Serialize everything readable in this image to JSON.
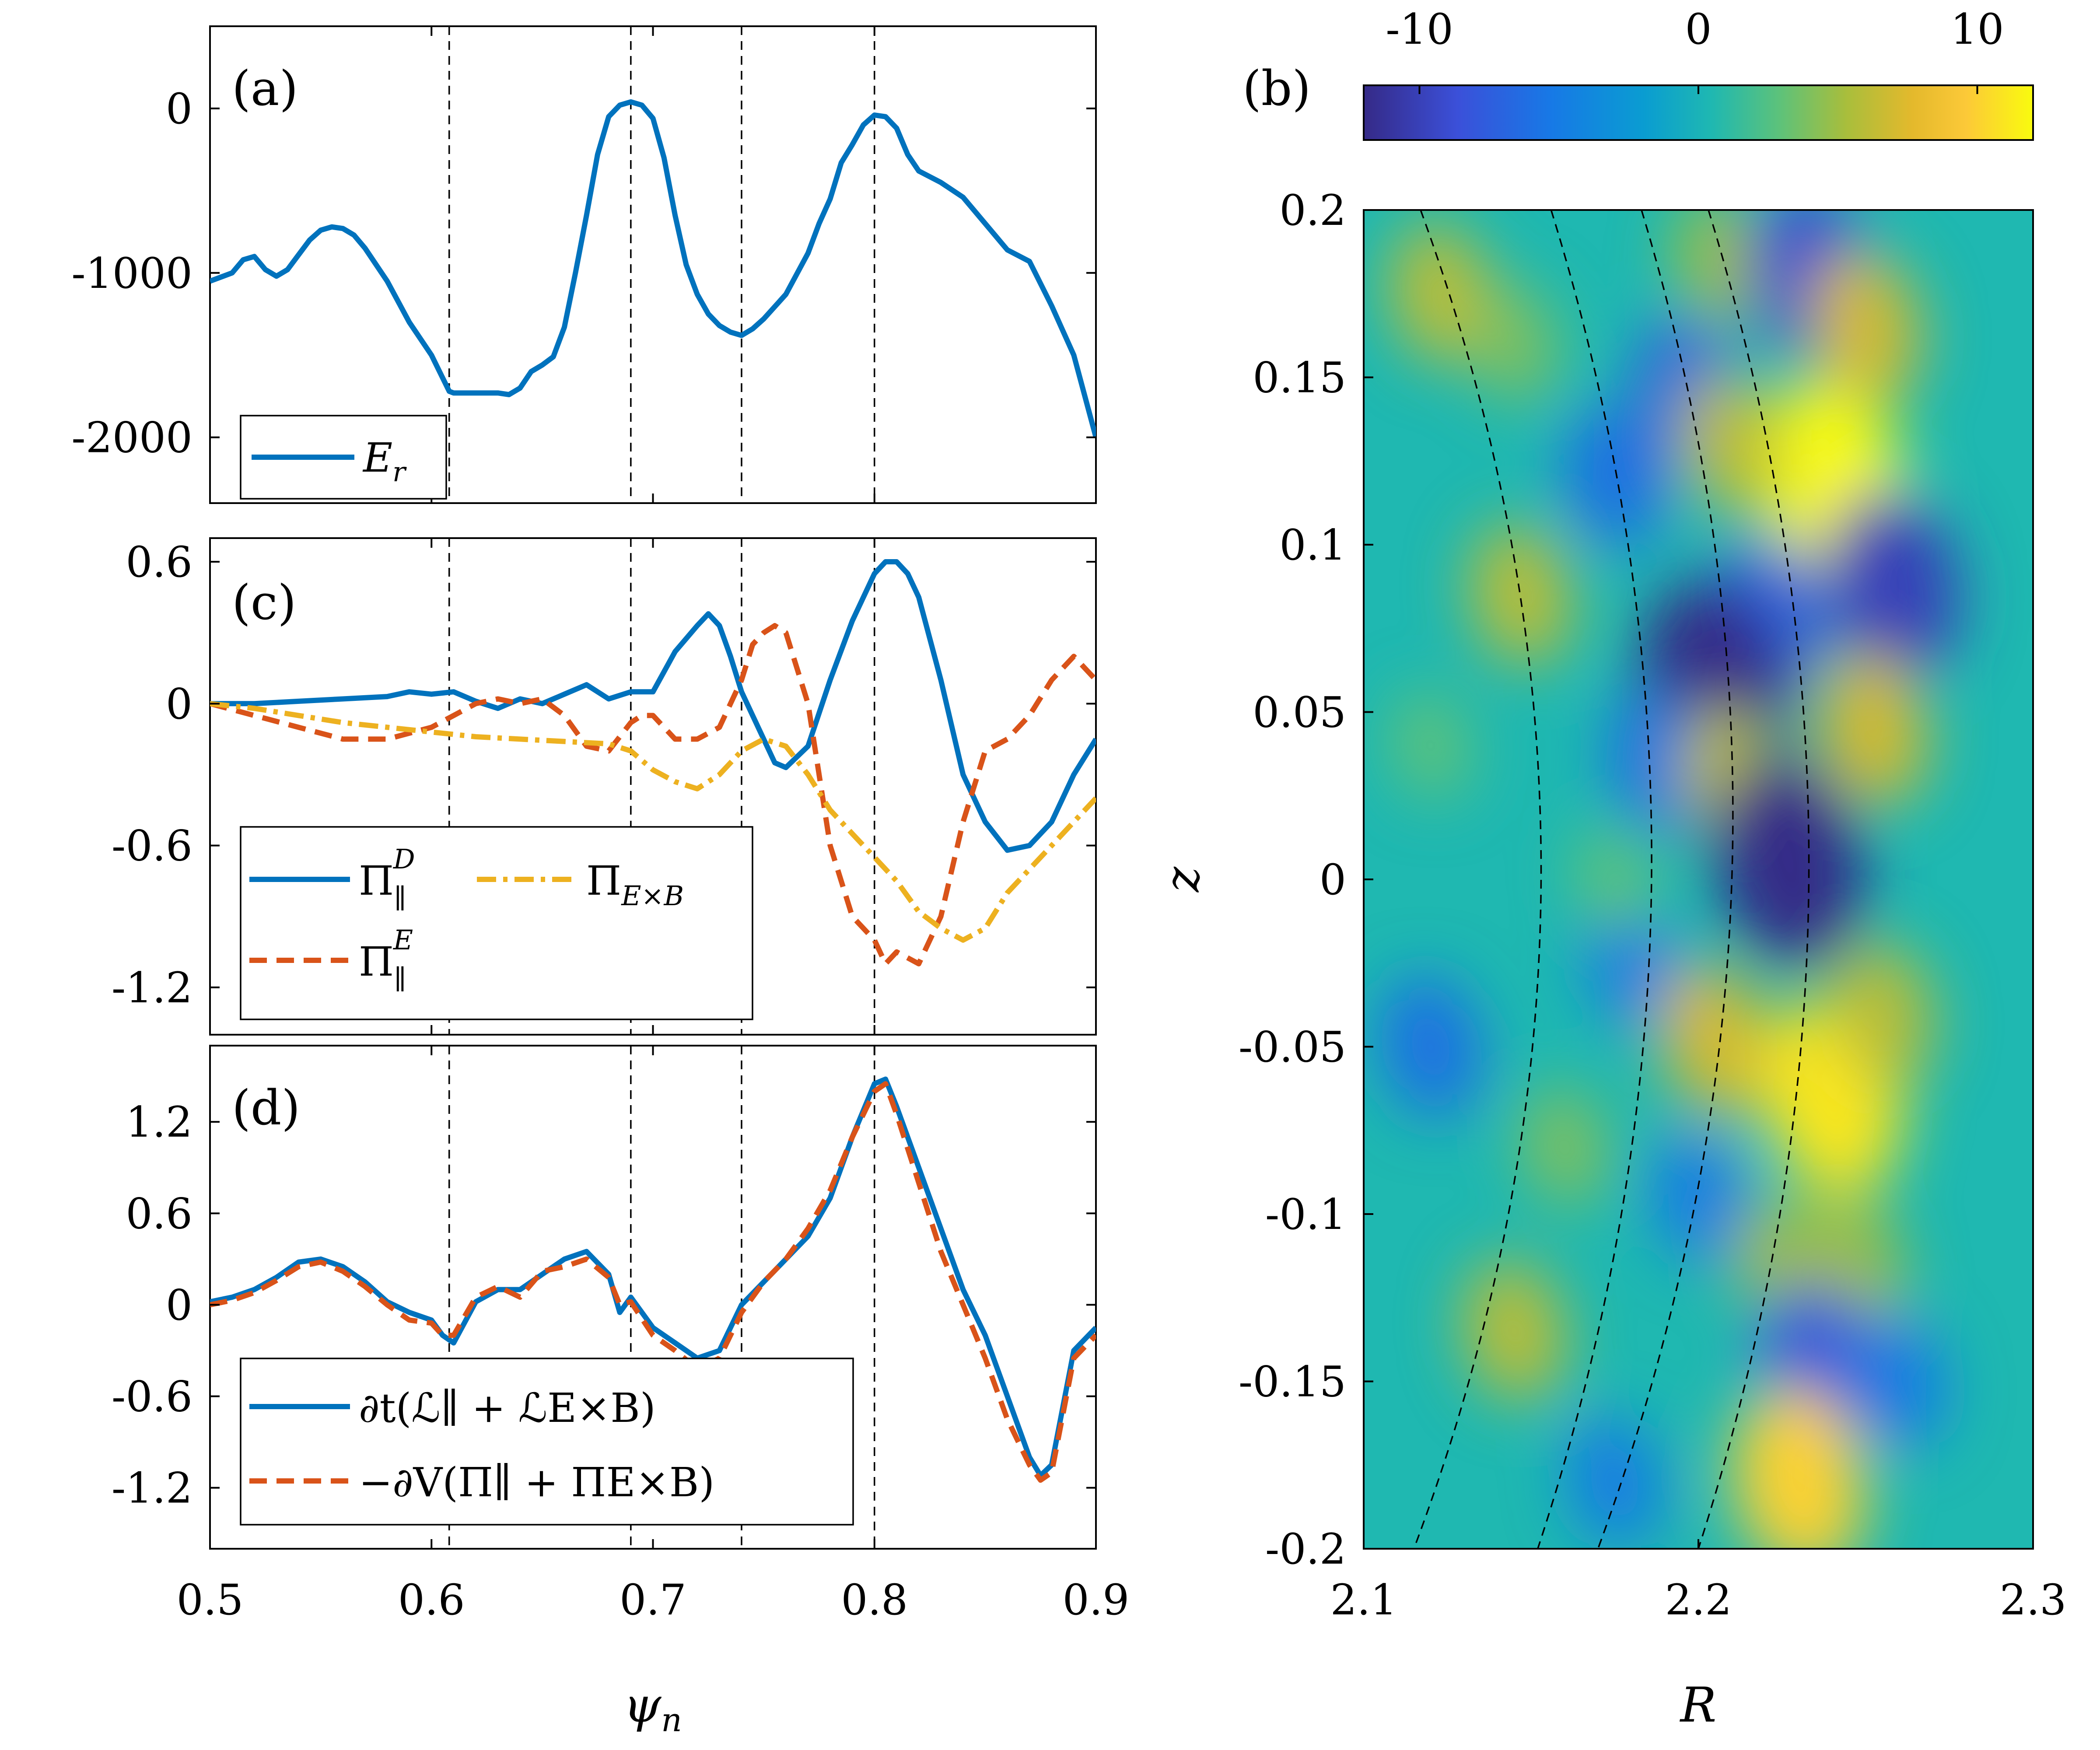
{
  "chart_data": [
    {
      "panel_label": "(a)",
      "type": "line",
      "xlim": [
        0.5,
        0.9
      ],
      "ylim": [
        -2400,
        500
      ],
      "yticks": [
        0,
        -1000,
        -2000
      ],
      "ytick_labels": [
        "0",
        "-1000",
        "-2000"
      ],
      "vlines": [
        0.608,
        0.69,
        0.74,
        0.8
      ],
      "series": [
        {
          "name": "E_r",
          "color": "#0072BD",
          "dash": "solid",
          "x": [
            0.5,
            0.51,
            0.515,
            0.52,
            0.525,
            0.53,
            0.535,
            0.54,
            0.545,
            0.55,
            0.555,
            0.56,
            0.565,
            0.57,
            0.58,
            0.59,
            0.6,
            0.608,
            0.61,
            0.62,
            0.63,
            0.635,
            0.64,
            0.645,
            0.65,
            0.655,
            0.66,
            0.665,
            0.67,
            0.675,
            0.68,
            0.685,
            0.69,
            0.695,
            0.7,
            0.705,
            0.71,
            0.715,
            0.72,
            0.725,
            0.73,
            0.735,
            0.74,
            0.745,
            0.75,
            0.76,
            0.77,
            0.775,
            0.78,
            0.785,
            0.79,
            0.795,
            0.8,
            0.805,
            0.81,
            0.815,
            0.82,
            0.83,
            0.84,
            0.85,
            0.86,
            0.87,
            0.88,
            0.89,
            0.9
          ],
          "values": [
            -1050,
            -1000,
            -920,
            -900,
            -980,
            -1020,
            -980,
            -890,
            -800,
            -740,
            -720,
            -730,
            -770,
            -850,
            -1050,
            -1300,
            -1500,
            -1720,
            -1730,
            -1730,
            -1730,
            -1740,
            -1700,
            -1600,
            -1560,
            -1510,
            -1330,
            -1000,
            -650,
            -280,
            -50,
            20,
            40,
            20,
            -60,
            -300,
            -650,
            -950,
            -1130,
            -1250,
            -1320,
            -1360,
            -1380,
            -1340,
            -1280,
            -1130,
            -880,
            -700,
            -550,
            -330,
            -220,
            -100,
            -40,
            -50,
            -120,
            -280,
            -380,
            -450,
            -540,
            -700,
            -860,
            -930,
            -1200,
            -1500,
            -2000
          ],
          "values_tail": []
        }
      ],
      "legend": [
        "E_r"
      ],
      "legend_placement": "bottom-left"
    },
    {
      "panel_label": "(c)",
      "type": "line",
      "xlim": [
        0.5,
        0.9
      ],
      "ylim": [
        -1.4,
        0.7
      ],
      "yticks": [
        0.6,
        0,
        -0.6,
        -1.2
      ],
      "ytick_labels": [
        "0.6",
        "0",
        "-0.6",
        "-1.2"
      ],
      "vlines": [
        0.608,
        0.69,
        0.74,
        0.8
      ],
      "series": [
        {
          "name": "Π∥D",
          "color": "#0072BD",
          "dash": "solid",
          "x": [
            0.5,
            0.52,
            0.54,
            0.56,
            0.58,
            0.59,
            0.6,
            0.61,
            0.62,
            0.63,
            0.64,
            0.65,
            0.66,
            0.67,
            0.68,
            0.69,
            0.7,
            0.71,
            0.72,
            0.725,
            0.73,
            0.735,
            0.74,
            0.745,
            0.75,
            0.755,
            0.76,
            0.77,
            0.78,
            0.79,
            0.8,
            0.805,
            0.81,
            0.815,
            0.82,
            0.83,
            0.84,
            0.85,
            0.86,
            0.87,
            0.88,
            0.89,
            0.9
          ],
          "values": [
            0.0,
            0.0,
            0.01,
            0.02,
            0.03,
            0.05,
            0.04,
            0.05,
            0.01,
            -0.02,
            0.02,
            0.0,
            0.04,
            0.08,
            0.02,
            0.05,
            0.05,
            0.22,
            0.33,
            0.38,
            0.33,
            0.2,
            0.05,
            -0.05,
            -0.15,
            -0.25,
            -0.27,
            -0.18,
            0.1,
            0.35,
            0.55,
            0.6,
            0.6,
            0.55,
            0.45,
            0.1,
            -0.3,
            -0.5,
            -0.62,
            -0.6,
            -0.5,
            -0.3,
            -0.15
          ]
        },
        {
          "name": "Π∥E",
          "color": "#D95319",
          "dash": "dashed",
          "x": [
            0.5,
            0.52,
            0.54,
            0.56,
            0.58,
            0.6,
            0.61,
            0.62,
            0.63,
            0.64,
            0.65,
            0.66,
            0.67,
            0.68,
            0.69,
            0.695,
            0.7,
            0.71,
            0.72,
            0.73,
            0.74,
            0.745,
            0.75,
            0.755,
            0.76,
            0.77,
            0.78,
            0.79,
            0.8,
            0.805,
            0.81,
            0.82,
            0.83,
            0.84,
            0.85,
            0.86,
            0.87,
            0.88,
            0.89,
            0.9
          ],
          "values": [
            0.0,
            -0.05,
            -0.1,
            -0.15,
            -0.15,
            -0.1,
            -0.05,
            0.0,
            0.02,
            0.0,
            0.02,
            -0.05,
            -0.18,
            -0.2,
            -0.08,
            -0.05,
            -0.05,
            -0.15,
            -0.15,
            -0.1,
            0.1,
            0.25,
            0.3,
            0.33,
            0.3,
            0.0,
            -0.6,
            -0.9,
            -1.0,
            -1.1,
            -1.05,
            -1.1,
            -0.9,
            -0.5,
            -0.2,
            -0.15,
            -0.05,
            0.1,
            0.2,
            0.1
          ]
        },
        {
          "name": "ΠE×B",
          "color": "#EDB120",
          "dash": "dashdot",
          "x": [
            0.5,
            0.52,
            0.54,
            0.56,
            0.58,
            0.6,
            0.62,
            0.64,
            0.66,
            0.68,
            0.69,
            0.7,
            0.71,
            0.72,
            0.73,
            0.74,
            0.75,
            0.76,
            0.77,
            0.78,
            0.79,
            0.8,
            0.81,
            0.82,
            0.83,
            0.84,
            0.85,
            0.86,
            0.87,
            0.88,
            0.89,
            0.9
          ],
          "values": [
            0.0,
            -0.02,
            -0.05,
            -0.08,
            -0.1,
            -0.12,
            -0.14,
            -0.15,
            -0.16,
            -0.17,
            -0.2,
            -0.28,
            -0.33,
            -0.36,
            -0.3,
            -0.2,
            -0.15,
            -0.18,
            -0.3,
            -0.45,
            -0.55,
            -0.65,
            -0.75,
            -0.88,
            -0.95,
            -1.0,
            -0.95,
            -0.8,
            -0.7,
            -0.6,
            -0.5,
            -0.4
          ]
        }
      ],
      "legend": [
        "Π∥D",
        "ΠE×B",
        "Π∥E"
      ],
      "legend_placement": "bottom-left"
    },
    {
      "panel_label": "(d)",
      "type": "line",
      "xlim": [
        0.5,
        0.9
      ],
      "ylim": [
        -1.6,
        1.7
      ],
      "yticks": [
        1.2,
        0.6,
        0,
        -0.6,
        -1.2
      ],
      "ytick_labels": [
        "1.2",
        "0.6",
        "0",
        "-0.6",
        "-1.2"
      ],
      "vlines": [
        0.608,
        0.69,
        0.74,
        0.8
      ],
      "series": [
        {
          "name": "∂t(ℒ∥ + ℒE×B)",
          "color": "#0072BD",
          "dash": "solid",
          "x": [
            0.5,
            0.51,
            0.52,
            0.53,
            0.54,
            0.55,
            0.56,
            0.57,
            0.58,
            0.59,
            0.6,
            0.605,
            0.61,
            0.62,
            0.63,
            0.64,
            0.65,
            0.66,
            0.67,
            0.68,
            0.685,
            0.69,
            0.7,
            0.71,
            0.72,
            0.73,
            0.74,
            0.75,
            0.76,
            0.77,
            0.78,
            0.79,
            0.8,
            0.805,
            0.81,
            0.82,
            0.83,
            0.84,
            0.85,
            0.86,
            0.87,
            0.875,
            0.88,
            0.89,
            0.9
          ],
          "values": [
            0.02,
            0.05,
            0.1,
            0.18,
            0.28,
            0.3,
            0.25,
            0.15,
            0.02,
            -0.05,
            -0.1,
            -0.2,
            -0.25,
            0.02,
            0.1,
            0.1,
            0.2,
            0.3,
            0.35,
            0.2,
            -0.05,
            0.05,
            -0.15,
            -0.25,
            -0.35,
            -0.3,
            0.0,
            0.15,
            0.3,
            0.45,
            0.7,
            1.1,
            1.45,
            1.48,
            1.3,
            0.9,
            0.5,
            0.1,
            -0.2,
            -0.6,
            -1.0,
            -1.12,
            -1.05,
            -0.3,
            -0.15
          ]
        },
        {
          "name": "−∂V(Π∥ + ΠE×B)",
          "color": "#D95319",
          "dash": "dashed",
          "x": [
            0.5,
            0.51,
            0.52,
            0.53,
            0.54,
            0.55,
            0.56,
            0.57,
            0.58,
            0.59,
            0.6,
            0.605,
            0.61,
            0.62,
            0.63,
            0.64,
            0.65,
            0.66,
            0.67,
            0.68,
            0.685,
            0.69,
            0.7,
            0.71,
            0.72,
            0.73,
            0.74,
            0.75,
            0.76,
            0.77,
            0.78,
            0.79,
            0.8,
            0.805,
            0.81,
            0.82,
            0.83,
            0.84,
            0.85,
            0.86,
            0.87,
            0.875,
            0.88,
            0.89,
            0.9
          ],
          "values": [
            0.0,
            0.03,
            0.08,
            0.16,
            0.25,
            0.28,
            0.22,
            0.12,
            0.0,
            -0.1,
            -0.12,
            -0.2,
            -0.2,
            0.05,
            0.12,
            0.05,
            0.22,
            0.25,
            0.3,
            0.18,
            0.0,
            0.02,
            -0.2,
            -0.3,
            -0.42,
            -0.35,
            -0.05,
            0.15,
            0.3,
            0.5,
            0.75,
            1.1,
            1.4,
            1.45,
            1.25,
            0.8,
            0.35,
            0.0,
            -0.35,
            -0.75,
            -1.05,
            -1.15,
            -1.1,
            -0.35,
            -0.2
          ]
        }
      ],
      "legend": [
        "∂t(ℒ∥ + ℒE×B)",
        "−∂V(Π∥ + ΠE×B)"
      ],
      "legend_placement": "bottom-left"
    },
    {
      "panel_label": "(b)",
      "type": "heatmap",
      "xlim": [
        2.1,
        2.3
      ],
      "ylim": [
        -0.2,
        0.2
      ],
      "xticks": [
        2.1,
        2.2,
        2.3
      ],
      "xtick_labels": [
        "2.1",
        "2.2",
        "2.3"
      ],
      "yticks": [
        0.2,
        0.15,
        0.1,
        0.05,
        0,
        -0.05,
        -0.1,
        -0.15,
        -0.2
      ],
      "ytick_labels": [
        "0.2",
        "0.15",
        "0.1",
        "0.05",
        "0",
        "-0.05",
        "-0.1",
        "-0.15",
        "-0.2"
      ],
      "colorbar": {
        "range": [
          -12,
          12
        ],
        "ticks": [
          -10,
          0,
          10
        ],
        "tick_labels": [
          "-10",
          "0",
          "10"
        ],
        "colormap": "parula",
        "placement": "top"
      },
      "blobs": [
        {
          "R": 2.123,
          "z": 0.175,
          "value": 6
        },
        {
          "R": 2.145,
          "z": 0.16,
          "value": 4
        },
        {
          "R": 2.175,
          "z": 0.12,
          "value": -6
        },
        {
          "R": 2.207,
          "z": 0.185,
          "value": 5
        },
        {
          "R": 2.234,
          "z": 0.18,
          "value": -9
        },
        {
          "R": 2.24,
          "z": 0.118,
          "value": 12
        },
        {
          "R": 2.25,
          "z": 0.165,
          "value": 7
        },
        {
          "R": 2.197,
          "z": 0.145,
          "value": -7
        },
        {
          "R": 2.21,
          "z": 0.13,
          "value": 6
        },
        {
          "R": 2.147,
          "z": 0.085,
          "value": 6
        },
        {
          "R": 2.222,
          "z": 0.08,
          "value": -7
        },
        {
          "R": 2.258,
          "z": 0.088,
          "value": -10
        },
        {
          "R": 2.205,
          "z": 0.058,
          "value": -12
        },
        {
          "R": 2.188,
          "z": 0.035,
          "value": -6
        },
        {
          "R": 2.21,
          "z": 0.03,
          "value": 6
        },
        {
          "R": 2.227,
          "z": 0.005,
          "value": -12
        },
        {
          "R": 2.252,
          "z": 0.045,
          "value": 7
        },
        {
          "R": 2.18,
          "z": -0.025,
          "value": -5
        },
        {
          "R": 2.12,
          "z": -0.05,
          "value": -6
        },
        {
          "R": 2.16,
          "z": -0.08,
          "value": 4
        },
        {
          "R": 2.205,
          "z": -0.048,
          "value": 7
        },
        {
          "R": 2.24,
          "z": -0.065,
          "value": 11
        },
        {
          "R": 2.255,
          "z": -0.04,
          "value": 6
        },
        {
          "R": 2.2,
          "z": -0.095,
          "value": -5
        },
        {
          "R": 2.225,
          "z": -0.115,
          "value": 5
        },
        {
          "R": 2.247,
          "z": -0.115,
          "value": 5
        },
        {
          "R": 2.236,
          "z": -0.145,
          "value": -8
        },
        {
          "R": 2.145,
          "z": -0.135,
          "value": 6
        },
        {
          "R": 2.23,
          "z": -0.18,
          "value": 10
        },
        {
          "R": 2.175,
          "z": -0.18,
          "value": -5
        },
        {
          "R": 2.26,
          "z": -0.15,
          "value": -5
        },
        {
          "R": 2.12,
          "z": 0.04,
          "value": 3
        },
        {
          "R": 2.175,
          "z": 0.0,
          "value": 3
        }
      ],
      "dashed_curves": [
        {
          "R_top": 2.117,
          "R_mid": 2.153,
          "R_bottom": 2.115
        },
        {
          "R_top": 2.156,
          "R_mid": 2.186,
          "R_bottom": 2.152
        },
        {
          "R_top": 2.183,
          "R_mid": 2.21,
          "R_bottom": 2.17
        },
        {
          "R_top": 2.203,
          "R_mid": 2.233,
          "R_bottom": 2.2
        }
      ]
    }
  ],
  "labels": {
    "panel_a": "(a)",
    "panel_b": "(b)",
    "panel_c": "(c)",
    "panel_d": "(d)",
    "left_xlabel": "ψn",
    "right_xlabel": "R",
    "right_ylabel": "z",
    "left_xticks": [
      "0.5",
      "0.6",
      "0.7",
      "0.8",
      "0.9"
    ]
  }
}
